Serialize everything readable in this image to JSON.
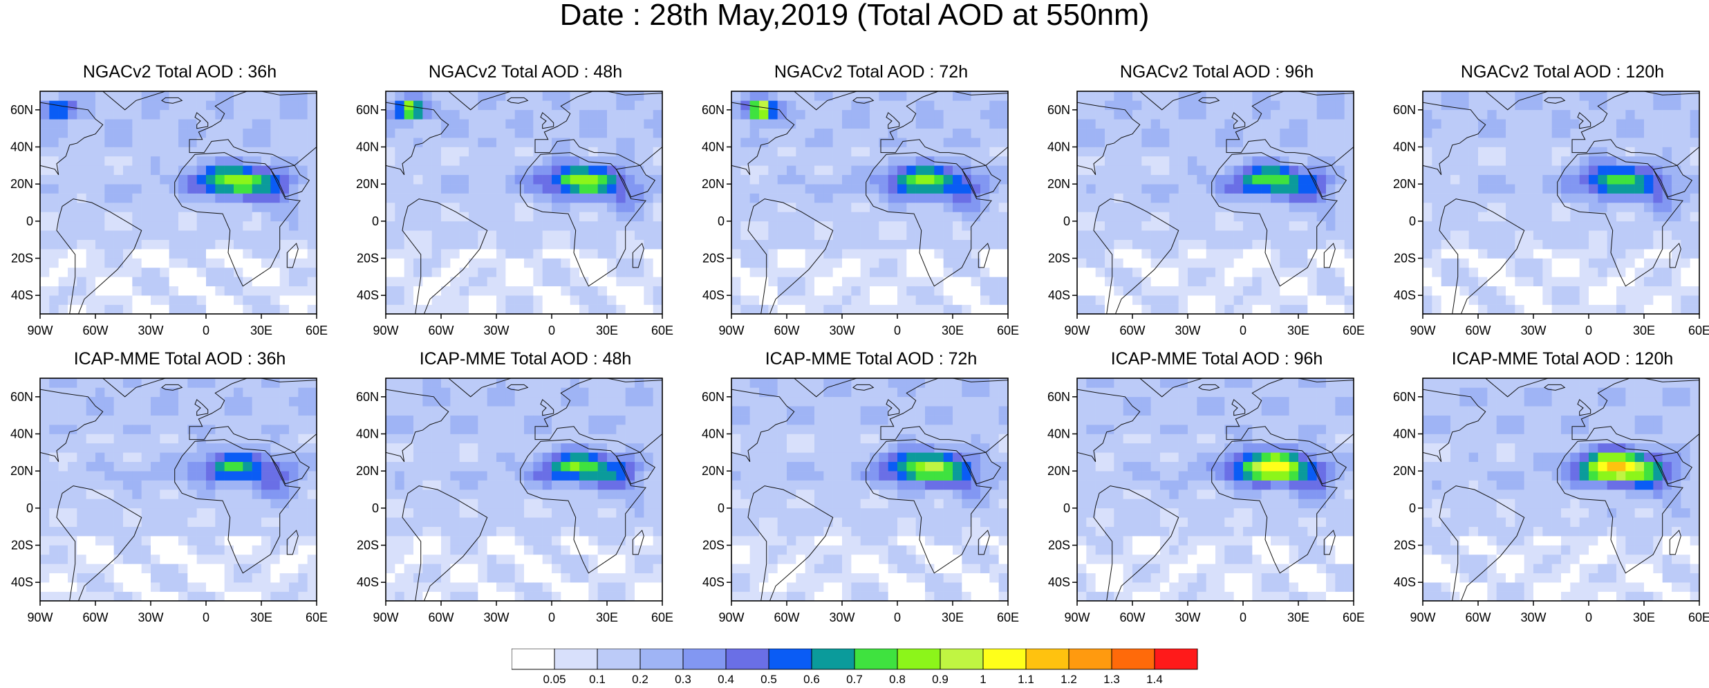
{
  "title": "Date : 28th May,2019 (Total AOD at 550nm)",
  "panels": [
    {
      "title": "NGACv2 Total AOD : 36h"
    },
    {
      "title": "NGACv2 Total AOD : 48h"
    },
    {
      "title": "NGACv2 Total AOD : 72h"
    },
    {
      "title": "NGACv2 Total AOD : 96h"
    },
    {
      "title": "NGACv2 Total AOD : 120h"
    },
    {
      "title": "ICAP-MME Total AOD : 36h"
    },
    {
      "title": "ICAP-MME Total AOD : 48h"
    },
    {
      "title": "ICAP-MME Total AOD : 72h"
    },
    {
      "title": "ICAP-MME Total AOD : 96h"
    },
    {
      "title": "ICAP-MME Total AOD : 120h"
    }
  ],
  "map_axes": {
    "lon_range": [
      -90,
      60
    ],
    "lat_range": [
      -50,
      70
    ],
    "lon_ticks": [
      "90W",
      "60W",
      "30W",
      "0",
      "30E",
      "60E"
    ],
    "lat_ticks": [
      "60N",
      "40N",
      "20N",
      "0",
      "20S",
      "40S"
    ]
  },
  "colorbar": {
    "labels": [
      "0.05",
      "0.1",
      "0.2",
      "0.3",
      "0.4",
      "0.5",
      "0.6",
      "0.7",
      "0.8",
      "0.9",
      "1",
      "1.1",
      "1.2",
      "1.3",
      "1.4"
    ],
    "colors": [
      "#ffffff",
      "#d8e0fb",
      "#bccbf8",
      "#9fb4f5",
      "#8297f2",
      "#6a6fe6",
      "#0a5cf5",
      "#0b9b9b",
      "#3fe23f",
      "#8cf51a",
      "#c0f542",
      "#ffff1a",
      "#ffc20f",
      "#ff9a0f",
      "#ff6a0a",
      "#ff1a1a"
    ]
  }
}
